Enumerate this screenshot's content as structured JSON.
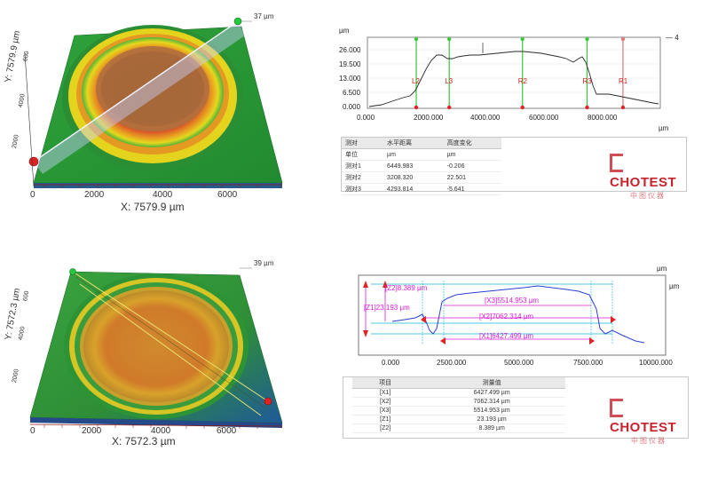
{
  "top_3d": {
    "height_label": "37 µm",
    "y_axis_label": "Y: 7579.9 µm",
    "y_ticks": [
      "2000",
      "4000",
      "600"
    ],
    "x_ticks": [
      "0",
      "2000",
      "4000",
      "6000"
    ],
    "x_axis_label": "X: 7579.9 µm"
  },
  "top_profile": {
    "y_unit": "µm",
    "x_unit": "µm",
    "y_ticks": [
      "26.000",
      "19.500",
      "13.000",
      "6.500",
      "0.000"
    ],
    "x_ticks": [
      "0.000",
      "2000.000",
      "4000.000",
      "6000.000",
      "8000.000"
    ],
    "legend": "—  4",
    "cursors": [
      {
        "label": "L2",
        "value": 1500,
        "color": "#38c838"
      },
      {
        "label": "L3",
        "value": 2650,
        "color": "#38c838"
      },
      {
        "label": "R2",
        "value": 5200,
        "color": "#38c838"
      },
      {
        "label": "R3",
        "value": 7450,
        "color": "#38c838"
      },
      {
        "label": "R1",
        "value": 8700,
        "color": "#e07878"
      }
    ]
  },
  "top_table": {
    "headers": [
      "测对",
      "水平距离",
      "高度变化"
    ],
    "units": [
      "单位",
      "µm",
      "µm"
    ],
    "rows": [
      [
        "测对1",
        "6449.983",
        "-0.206"
      ],
      [
        "测对2",
        "3208.320",
        "22.501"
      ],
      [
        "测对3",
        "4293.814",
        "-5.641"
      ]
    ]
  },
  "bottom_3d": {
    "height_label": "39 µm",
    "y_axis_label": "Y: 7572.3 µm",
    "y_ticks": [
      "2000",
      "4000",
      "600"
    ],
    "x_ticks": [
      "0",
      "2000",
      "4000",
      "6000"
    ],
    "x_axis_label": "X: 7572.3 µm"
  },
  "bottom_profile": {
    "y_unit": "µm",
    "x_unit": "µm",
    "x_ticks": [
      "0.000",
      "2500.000",
      "5000.000",
      "7500.000",
      "10000.000"
    ],
    "annotations": {
      "z2": "[Z2]8.389 μm",
      "x3": "[X3]5514.953 μm",
      "z1": "[Z1]23.193 μm",
      "x2": "[X2]7062.314 μm",
      "x1": "[X1]6427.499 μm"
    }
  },
  "bottom_table": {
    "headers": [
      "项目",
      "测量值"
    ],
    "rows": [
      [
        "[X1]",
        "6427.499 µm"
      ],
      [
        "[X2]",
        "7062.314 µm"
      ],
      [
        "[X3]",
        "5514.953 µm"
      ],
      [
        "[Z1]",
        "23.193 µm"
      ],
      [
        "[Z2]",
        "8.389 µm"
      ]
    ]
  },
  "logo": {
    "brand": "CHOTEST",
    "cn": "中图仪器"
  },
  "colors": {
    "profile_line": "#2a2a2a",
    "annotation": "#d81bd8",
    "guide": "#18b6d8",
    "curve_blue": "#2b3fd0"
  }
}
